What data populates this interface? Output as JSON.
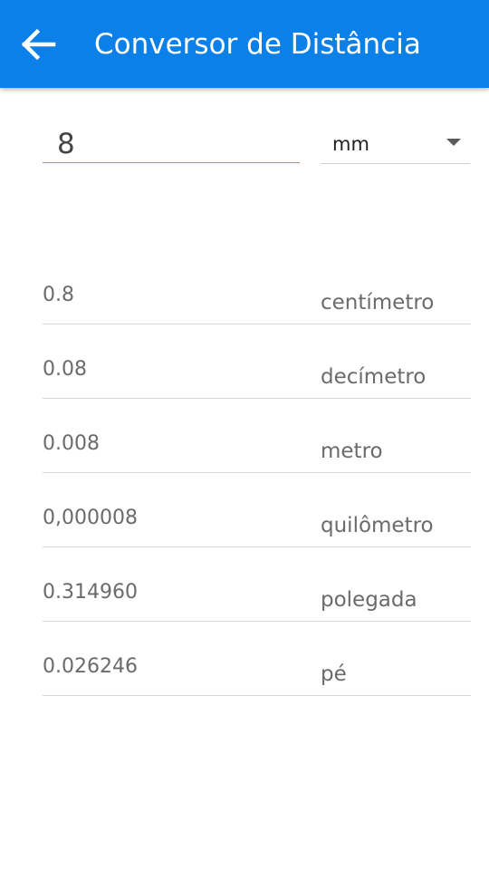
{
  "app_bar": {
    "title": "Conversor de Distância",
    "back_icon": "arrow-left-icon",
    "color": "#0a80e8"
  },
  "input": {
    "value": "8",
    "underline_color": "#e0824a"
  },
  "unit_select": {
    "selected": "mm",
    "icon": "dropdown-arrow-icon"
  },
  "results": [
    {
      "value": "0.8",
      "unit": "centímetro"
    },
    {
      "value": "0.08",
      "unit": "decímetro"
    },
    {
      "value": "0.008",
      "unit": "metro"
    },
    {
      "value": "0,000008",
      "unit": "quilômetro"
    },
    {
      "value": "0.314960",
      "unit": "polegada"
    },
    {
      "value": "0.026246",
      "unit": "pé"
    }
  ]
}
